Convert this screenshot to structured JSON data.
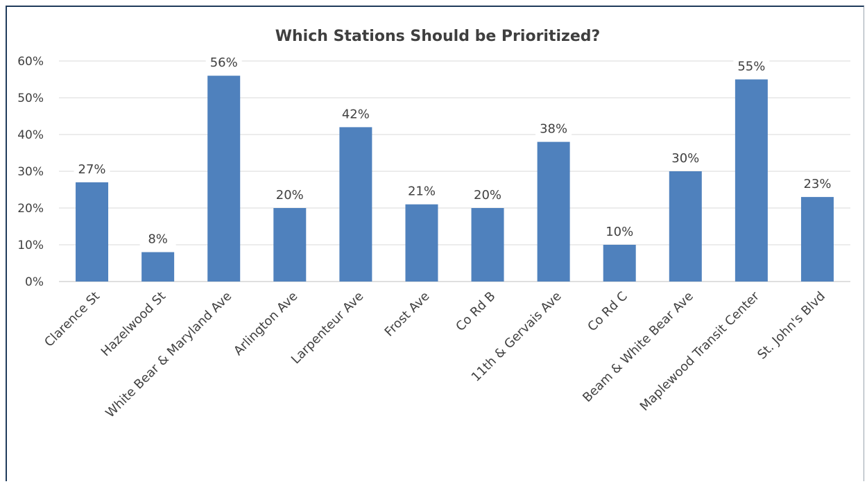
{
  "chart_data": {
    "type": "bar",
    "title": "Which Stations Should be Prioritized?",
    "categories": [
      "Clarence St",
      "Hazelwood St",
      "White Bear & Maryland Ave",
      "Arlington Ave",
      "Larpenteur Ave",
      "Frost Ave",
      "Co Rd B",
      "11th & Gervais Ave",
      "Co Rd C",
      "Beam & White Bear Ave",
      "Maplewood Transit Center",
      "St. John's Blvd"
    ],
    "values": [
      27,
      8,
      56,
      20,
      42,
      21,
      20,
      38,
      10,
      30,
      55,
      23
    ],
    "data_labels": [
      "27%",
      "8%",
      "56%",
      "20%",
      "42%",
      "21%",
      "20%",
      "38%",
      "10%",
      "30%",
      "55%",
      "23%"
    ],
    "yticks": [
      "0%",
      "10%",
      "20%",
      "30%",
      "40%",
      "50%",
      "60%"
    ],
    "ylim": [
      0,
      60
    ],
    "grid": true,
    "legend": "none",
    "bar_color": "#4f81bd",
    "grid_color": "#d9d9d9"
  }
}
